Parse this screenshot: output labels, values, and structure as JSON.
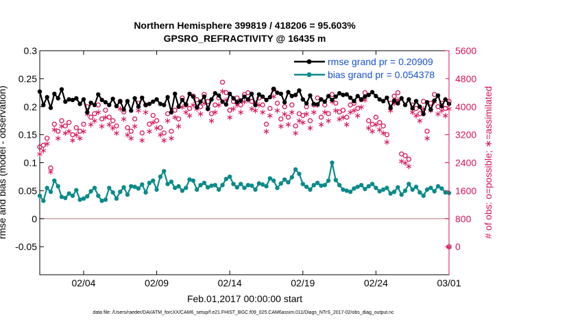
{
  "chart_data": {
    "type": "line",
    "title": "Northern Hemisphere 399819 / 418206 = 95.603%",
    "subtitle": "GPSRO_REFRACTIVITY @ 16435 m",
    "xlabel": "Feb.01,2017 00:00:00 start",
    "ylabel": "rmse and bias (model - observation)",
    "y2label": "# of obs: o=possible; ∗=assimilated",
    "footer": "data file: /Users/raeder/DAI/ATM_forcXX/CAM6_setup/f.e21.FHIST_BGC.f09_025.CAM6assim.011/Diags_NTrS_2017-02/obs_diag_output.nc",
    "xlim": [
      1,
      29
    ],
    "ylim": [
      -0.1,
      0.3
    ],
    "y2lim": [
      -800,
      5600
    ],
    "x_ticks": [
      4,
      9,
      14,
      19,
      24,
      29
    ],
    "x_tick_labels": [
      "02/04",
      "02/09",
      "02/14",
      "02/19",
      "02/24",
      "03/01"
    ],
    "y_ticks": [
      -0.05,
      0,
      0.05,
      0.1,
      0.15,
      0.2,
      0.25,
      0.3
    ],
    "y_tick_labels": [
      "-0.05",
      "0",
      "0.05",
      "0.1",
      "0.15",
      "0.2",
      "0.25",
      "0.3"
    ],
    "y2_ticks": [
      0,
      800,
      1600,
      2400,
      3200,
      4000,
      4800,
      5600
    ],
    "y2_tick_labels": [
      "0",
      "800",
      "1600",
      "2400",
      "3200",
      "4000",
      "4800",
      "5600"
    ],
    "grid": false,
    "legend_position": "top-right",
    "colors": {
      "rmse": "#000000",
      "bias": "#0a8a8a",
      "obs": "#d6125a",
      "zero_line": "#c8a0a0",
      "legend_text": "#1450d2"
    },
    "series": [
      {
        "name": "rmse grand pr = 0.20909",
        "x": [
          1.0,
          1.25,
          1.5,
          1.75,
          2.0,
          2.25,
          2.5,
          2.75,
          3.0,
          3.25,
          3.5,
          3.75,
          4.0,
          4.25,
          4.5,
          4.75,
          5.0,
          5.25,
          5.5,
          5.75,
          6.0,
          6.25,
          6.5,
          6.75,
          7.0,
          7.25,
          7.5,
          7.75,
          8.0,
          8.25,
          8.5,
          8.75,
          9.0,
          9.25,
          9.5,
          9.75,
          10.0,
          10.25,
          10.5,
          10.75,
          11.0,
          11.25,
          11.5,
          11.75,
          12.0,
          12.25,
          12.5,
          12.75,
          13.0,
          13.25,
          13.5,
          13.75,
          14.0,
          14.25,
          14.5,
          14.75,
          15.0,
          15.25,
          15.5,
          15.75,
          16.0,
          16.25,
          16.5,
          16.75,
          17.0,
          17.25,
          17.5,
          17.75,
          18.0,
          18.25,
          18.5,
          18.75,
          19.0,
          19.25,
          19.5,
          19.75,
          20.0,
          20.25,
          20.5,
          20.75,
          21.0,
          21.25,
          21.5,
          21.75,
          22.0,
          22.25,
          22.5,
          22.75,
          23.0,
          23.25,
          23.5,
          23.75,
          24.0,
          24.25,
          24.5,
          24.75,
          25.0,
          25.25,
          25.5,
          25.75,
          26.0,
          26.25,
          26.5,
          26.75,
          27.0,
          27.25,
          27.5,
          27.75,
          28.0,
          28.25,
          28.5,
          28.75,
          29.0
        ],
        "values": [
          0.227,
          0.203,
          0.217,
          0.198,
          0.223,
          0.215,
          0.231,
          0.209,
          0.213,
          0.212,
          0.215,
          0.205,
          0.213,
          0.19,
          0.207,
          0.203,
          0.222,
          0.212,
          0.208,
          0.203,
          0.214,
          0.201,
          0.21,
          0.195,
          0.21,
          0.193,
          0.215,
          0.2,
          0.216,
          0.203,
          0.205,
          0.209,
          0.213,
          0.205,
          0.203,
          0.217,
          0.19,
          0.223,
          0.2,
          0.212,
          0.204,
          0.223,
          0.218,
          0.199,
          0.209,
          0.218,
          0.196,
          0.213,
          0.224,
          0.22,
          0.209,
          0.204,
          0.223,
          0.215,
          0.208,
          0.211,
          0.218,
          0.213,
          0.223,
          0.203,
          0.222,
          0.218,
          0.212,
          0.217,
          0.232,
          0.225,
          0.223,
          0.208,
          0.226,
          0.219,
          0.221,
          0.229,
          0.213,
          0.206,
          0.22,
          0.205,
          0.204,
          0.213,
          0.209,
          0.219,
          0.212,
          0.218,
          0.224,
          0.221,
          0.222,
          0.216,
          0.21,
          0.219,
          0.213,
          0.218,
          0.221,
          0.226,
          0.219,
          0.213,
          0.21,
          0.216,
          0.198,
          0.211,
          0.206,
          0.215,
          0.203,
          0.213,
          0.197,
          0.21,
          0.2,
          0.187,
          0.208,
          0.195,
          0.211,
          0.22,
          0.201,
          0.213,
          0.205
        ]
      },
      {
        "name": "bias grand pr = 0.054378",
        "x": [
          1.0,
          1.25,
          1.5,
          1.75,
          2.0,
          2.25,
          2.5,
          2.75,
          3.0,
          3.25,
          3.5,
          3.75,
          4.0,
          4.25,
          4.5,
          4.75,
          5.0,
          5.25,
          5.5,
          5.75,
          6.0,
          6.25,
          6.5,
          6.75,
          7.0,
          7.25,
          7.5,
          7.75,
          8.0,
          8.25,
          8.5,
          8.75,
          9.0,
          9.25,
          9.5,
          9.75,
          10.0,
          10.25,
          10.5,
          10.75,
          11.0,
          11.25,
          11.5,
          11.75,
          12.0,
          12.25,
          12.5,
          12.75,
          13.0,
          13.25,
          13.5,
          13.75,
          14.0,
          14.25,
          14.5,
          14.75,
          15.0,
          15.25,
          15.5,
          15.75,
          16.0,
          16.25,
          16.5,
          16.75,
          17.0,
          17.25,
          17.5,
          17.75,
          18.0,
          18.25,
          18.5,
          18.75,
          19.0,
          19.25,
          19.5,
          19.75,
          20.0,
          20.25,
          20.5,
          20.75,
          21.0,
          21.25,
          21.5,
          21.75,
          22.0,
          22.25,
          22.5,
          22.75,
          23.0,
          23.25,
          23.5,
          23.75,
          24.0,
          24.25,
          24.5,
          24.75,
          25.0,
          25.25,
          25.5,
          25.75,
          26.0,
          26.25,
          26.5,
          26.75,
          27.0,
          27.25,
          27.5,
          27.75,
          28.0,
          28.25,
          28.5,
          28.75,
          29.0
        ],
        "values": [
          0.041,
          0.032,
          0.055,
          0.048,
          0.068,
          0.058,
          0.039,
          0.037,
          0.045,
          0.041,
          0.051,
          0.034,
          0.036,
          0.04,
          0.049,
          0.055,
          0.041,
          0.032,
          0.034,
          0.055,
          0.047,
          0.036,
          0.048,
          0.056,
          0.043,
          0.058,
          0.057,
          0.054,
          0.061,
          0.047,
          0.064,
          0.068,
          0.052,
          0.075,
          0.085,
          0.062,
          0.066,
          0.055,
          0.058,
          0.05,
          0.055,
          0.07,
          0.068,
          0.052,
          0.06,
          0.064,
          0.056,
          0.059,
          0.06,
          0.052,
          0.06,
          0.071,
          0.075,
          0.062,
          0.056,
          0.062,
          0.055,
          0.06,
          0.059,
          0.052,
          0.063,
          0.061,
          0.058,
          0.072,
          0.068,
          0.055,
          0.063,
          0.07,
          0.065,
          0.074,
          0.088,
          0.08,
          0.062,
          0.057,
          0.052,
          0.06,
          0.064,
          0.059,
          0.06,
          0.068,
          0.1,
          0.069,
          0.06,
          0.052,
          0.05,
          0.048,
          0.054,
          0.057,
          0.06,
          0.053,
          0.058,
          0.062,
          0.055,
          0.049,
          0.052,
          0.055,
          0.045,
          0.048,
          0.056,
          0.043,
          0.05,
          0.062,
          0.052,
          0.057,
          0.047,
          0.041,
          0.052,
          0.055,
          0.049,
          0.058,
          0.054,
          0.047,
          0.046
        ]
      },
      {
        "name": "# of obs possible",
        "axis": "right",
        "x": [
          1.0,
          1.25,
          1.5,
          1.75,
          2.0,
          2.25,
          2.5,
          2.75,
          3.0,
          3.25,
          3.5,
          3.75,
          4.0,
          4.25,
          4.5,
          4.75,
          5.0,
          5.25,
          5.5,
          5.75,
          6.0,
          6.25,
          6.5,
          6.75,
          7.0,
          7.25,
          7.5,
          7.75,
          8.0,
          8.25,
          8.5,
          8.75,
          9.0,
          9.25,
          9.5,
          9.75,
          10.0,
          10.25,
          10.5,
          10.75,
          11.0,
          11.25,
          11.5,
          11.75,
          12.0,
          12.25,
          12.5,
          12.75,
          13.0,
          13.25,
          13.5,
          13.75,
          14.0,
          14.25,
          14.5,
          14.75,
          15.0,
          15.25,
          15.5,
          15.75,
          16.0,
          16.25,
          16.5,
          16.75,
          17.0,
          17.25,
          17.5,
          17.75,
          18.0,
          18.25,
          18.5,
          18.75,
          19.0,
          19.25,
          19.5,
          19.75,
          20.0,
          20.25,
          20.5,
          20.75,
          21.0,
          21.25,
          21.5,
          21.75,
          22.0,
          22.25,
          22.5,
          22.75,
          23.0,
          23.25,
          23.5,
          23.75,
          24.0,
          24.25,
          24.5,
          24.75,
          25.0,
          25.25,
          25.5,
          25.75,
          26.0,
          26.25,
          26.5,
          26.75,
          27.0,
          27.25,
          27.5,
          27.75,
          28.0,
          28.25,
          28.5,
          28.75,
          29.0
        ],
        "values": [
          2850,
          2900,
          3100,
          2250,
          3500,
          3300,
          3600,
          3450,
          3550,
          3200,
          3400,
          3300,
          3500,
          4000,
          3700,
          3800,
          4050,
          3650,
          3900,
          3700,
          3600,
          3450,
          4150,
          3850,
          3400,
          3300,
          3650,
          4100,
          3250,
          4050,
          3500,
          3750,
          3600,
          3400,
          3250,
          3800,
          3300,
          3900,
          3650,
          4250,
          4050,
          3950,
          4300,
          4200,
          4000,
          4350,
          4150,
          3800,
          4050,
          4250,
          4700,
          4400,
          3900,
          4150,
          4250,
          4050,
          4350,
          4400,
          4150,
          4100,
          4250,
          4050,
          3500,
          3950,
          4500,
          4100,
          3650,
          4000,
          3700,
          4050,
          3450,
          3800,
          3750,
          4000,
          3600,
          4050,
          4250,
          3700,
          4050,
          3800,
          4350,
          4100,
          3850,
          3900,
          3700,
          4050,
          4100,
          3950,
          4200,
          4400,
          3600,
          3500,
          3700,
          3550,
          3450,
          3200,
          4100,
          4300,
          4400,
          2650,
          2600,
          2500,
          4050,
          3950,
          3800,
          4150,
          3300,
          4100,
          4350,
          4000,
          4100,
          3950,
          4150
        ]
      },
      {
        "name": "# of obs assimilated",
        "axis": "right",
        "x": [
          1.0,
          1.25,
          1.5,
          1.75,
          2.0,
          2.25,
          2.5,
          2.75,
          3.0,
          3.25,
          3.5,
          3.75,
          4.0,
          4.25,
          4.5,
          4.75,
          5.0,
          5.25,
          5.5,
          5.75,
          6.0,
          6.25,
          6.5,
          6.75,
          7.0,
          7.25,
          7.5,
          7.75,
          8.0,
          8.25,
          8.5,
          8.75,
          9.0,
          9.25,
          9.5,
          9.75,
          10.0,
          10.25,
          10.5,
          10.75,
          11.0,
          11.25,
          11.5,
          11.75,
          12.0,
          12.25,
          12.5,
          12.75,
          13.0,
          13.25,
          13.5,
          13.75,
          14.0,
          14.25,
          14.5,
          14.75,
          15.0,
          15.25,
          15.5,
          15.75,
          16.0,
          16.25,
          16.5,
          16.75,
          17.0,
          17.25,
          17.5,
          17.75,
          18.0,
          18.25,
          18.5,
          18.75,
          19.0,
          19.25,
          19.5,
          19.75,
          20.0,
          20.25,
          20.5,
          20.75,
          21.0,
          21.25,
          21.5,
          21.75,
          22.0,
          22.25,
          22.5,
          22.75,
          23.0,
          23.25,
          23.5,
          23.75,
          24.0,
          24.25,
          24.5,
          24.75,
          25.0,
          25.25,
          25.5,
          25.75,
          26.0,
          26.25,
          26.5,
          26.75,
          27.0,
          27.25,
          27.5,
          27.75,
          28.0,
          28.25,
          28.5,
          28.75,
          29.0
        ],
        "values": [
          2650,
          2750,
          2950,
          2150,
          3350,
          3100,
          3450,
          3250,
          3300,
          3050,
          3200,
          3100,
          3300,
          3800,
          3500,
          3600,
          3850,
          3450,
          3700,
          3500,
          3400,
          3250,
          3950,
          3650,
          3200,
          3100,
          3450,
          3900,
          3050,
          3850,
          3300,
          3550,
          3400,
          3200,
          3050,
          3600,
          3100,
          3700,
          3450,
          4000,
          3850,
          3750,
          4050,
          3950,
          3800,
          4100,
          3950,
          3600,
          3850,
          4050,
          4450,
          4200,
          3700,
          3950,
          4050,
          3850,
          4150,
          4200,
          3950,
          3900,
          4050,
          3850,
          3300,
          3750,
          4300,
          3900,
          3450,
          3800,
          3500,
          3850,
          3250,
          3600,
          3550,
          3800,
          3400,
          3850,
          4050,
          3500,
          3850,
          3600,
          4150,
          3900,
          3650,
          3700,
          3500,
          3850,
          3900,
          3750,
          4000,
          4200,
          3400,
          3300,
          3500,
          3350,
          3250,
          3000,
          3900,
          4100,
          4200,
          2450,
          2400,
          2300,
          3850,
          3750,
          3600,
          3950,
          3100,
          3900,
          4150,
          3800,
          3900,
          3750,
          3950
        ]
      }
    ],
    "extra_points": [
      {
        "name": "obs-right-edge-possible",
        "x": 29,
        "y2": 0
      },
      {
        "name": "obs-right-edge-assimilated",
        "x": 29,
        "y2": 0
      }
    ]
  }
}
